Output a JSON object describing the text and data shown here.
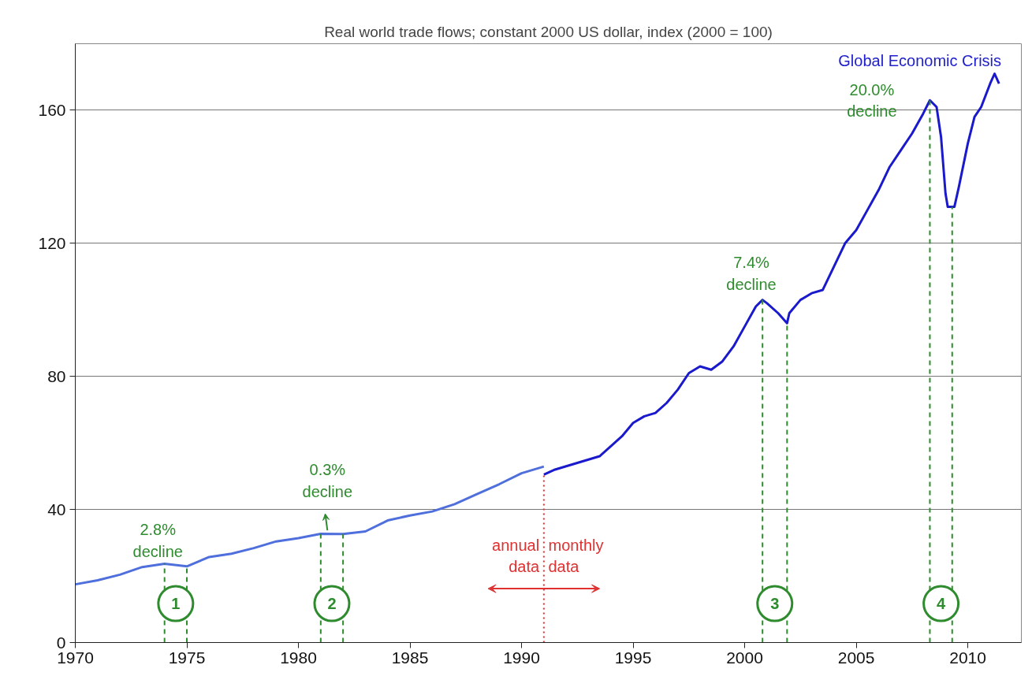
{
  "chart_data": {
    "type": "line",
    "title": "Real world trade flows; constant 2000 US dollar, index (2000 = 100)",
    "xlim": [
      1970,
      2012.4
    ],
    "xticks": [
      1970,
      1975,
      1980,
      1985,
      1990,
      1995,
      2000,
      2005,
      2010
    ],
    "ylim": [
      0,
      180
    ],
    "yticks": [
      0,
      40,
      80,
      120,
      160
    ],
    "grid": "y",
    "marker": "none",
    "line_style": "solid",
    "series": [
      {
        "color": "#4f6fdc",
        "x": [
          1970,
          1971,
          1972,
          1973,
          1974,
          1975,
          1976,
          1977,
          1978,
          1979,
          1980,
          1981,
          1982,
          1983,
          1984,
          1985,
          1986,
          1987,
          1988,
          1989,
          1990,
          1991
        ],
        "values": [
          17.5,
          18.7,
          20.4,
          22.7,
          23.7,
          22.9,
          25.7,
          26.7,
          28.4,
          30.4,
          31.4,
          32.7,
          32.6,
          33.4,
          36.7,
          38.2,
          39.4,
          41.6,
          44.6,
          47.6,
          50.9,
          52.9
        ]
      },
      {
        "color": "#1a1acc",
        "x": [
          1991.0,
          1991.5,
          1992,
          1993,
          1993.5,
          1994,
          1994.5,
          1995,
          1995.5,
          1996,
          1996.5,
          1997,
          1997.5,
          1998,
          1998.5,
          1999,
          1999.5,
          2000,
          2000.5,
          2000.8,
          2001,
          2001.5,
          2001.9,
          2002,
          2002.5,
          2003,
          2003.5,
          2004,
          2004.5,
          2005,
          2005.5,
          2006,
          2006.5,
          2007,
          2007.5,
          2008,
          2008.3,
          2008.6,
          2008.8,
          2009.0,
          2009.1,
          2009.4,
          2009.6,
          2010,
          2010.3,
          2010.6,
          2011,
          2011.2,
          2011.4
        ],
        "values": [
          50.5,
          52,
          53,
          55,
          56,
          59,
          62,
          66,
          68,
          69,
          72,
          76,
          81,
          83,
          82,
          84.5,
          89,
          95,
          101,
          103,
          102,
          99,
          96,
          99,
          103,
          105,
          106,
          113,
          120,
          124,
          130,
          136,
          143,
          148,
          153,
          159,
          163,
          161,
          152,
          135,
          131,
          131,
          137,
          150,
          158,
          161,
          168,
          171,
          168
        ]
      }
    ],
    "ref_lines": [
      {
        "axis": "x",
        "value": 1974,
        "color": "#2e8b2e",
        "line_style": "dashed"
      },
      {
        "axis": "x",
        "value": 1975,
        "color": "#2e8b2e",
        "line_style": "dashed"
      },
      {
        "axis": "x",
        "value": 1981,
        "color": "#2e8b2e",
        "line_style": "dashed"
      },
      {
        "axis": "x",
        "value": 1982,
        "color": "#2e8b2e",
        "line_style": "dashed"
      },
      {
        "axis": "x",
        "value": 2000.8,
        "color": "#2e8b2e",
        "line_style": "dashed"
      },
      {
        "axis": "x",
        "value": 2001.9,
        "color": "#2e8b2e",
        "line_style": "dashed"
      },
      {
        "axis": "x",
        "value": 2008.3,
        "color": "#2e8b2e",
        "line_style": "dashed"
      },
      {
        "axis": "x",
        "value": 2009.3,
        "color": "#2e8b2e",
        "line_style": "dashed"
      },
      {
        "axis": "x",
        "value": 1991,
        "color": "#e03030",
        "line_style": "dotted"
      }
    ],
    "annotations": [
      "2.8%\ndecline",
      "0.3%\ndecline",
      "7.4%\ndecline",
      "20.0%\ndecline",
      "Global Economic Crisis",
      "annual\ndata",
      "monthly\ndata",
      "1",
      "2",
      "3",
      "4"
    ]
  }
}
